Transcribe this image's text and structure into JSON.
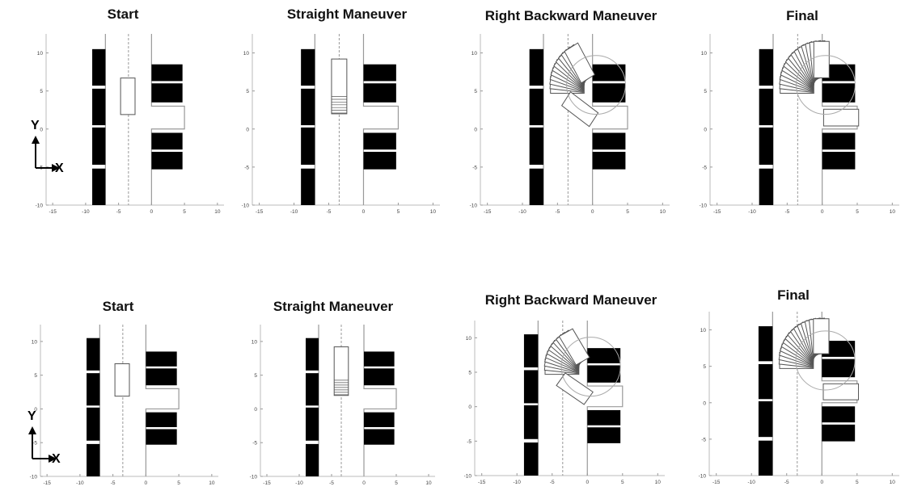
{
  "titles": [
    "Start",
    "Straight Maneuver",
    "Right Backward Maneuver",
    "Final"
  ],
  "axis_labels": {
    "x": "X",
    "y": "Y"
  },
  "x_ticks": [
    -15,
    -10,
    -5,
    0,
    5,
    10
  ],
  "y_ticks": [
    -10,
    -5,
    0,
    5,
    10
  ],
  "xlim": [
    -16,
    11
  ],
  "ylim": [
    -10,
    12.5
  ],
  "scene": {
    "road_edge_left_x": -7,
    "center_line_x": -3.5,
    "road_edge_right_x": 0,
    "left_cars": [
      [
        -9,
        -10,
        -7,
        -5.2
      ],
      [
        -9,
        -4.7,
        -7,
        0.2
      ],
      [
        -9,
        0.5,
        -7,
        5.3
      ],
      [
        -9,
        5.7,
        -7,
        10.5
      ]
    ],
    "right_cars": [
      [
        0,
        3.5,
        4.7,
        6
      ],
      [
        0,
        6.3,
        4.7,
        8.5
      ],
      [
        0,
        -5.3,
        4.7,
        -3
      ],
      [
        0,
        -2.7,
        4.7,
        -0.5
      ]
    ],
    "slot_x": [
      0,
      5
    ],
    "slot_y": [
      0,
      3
    ],
    "turn_circle": {
      "cx": 0.5,
      "cy": 5.8,
      "r": 4.2
    }
  },
  "colors": {
    "car": "#000000",
    "road": "#999999",
    "vehicle": "#555555"
  }
}
